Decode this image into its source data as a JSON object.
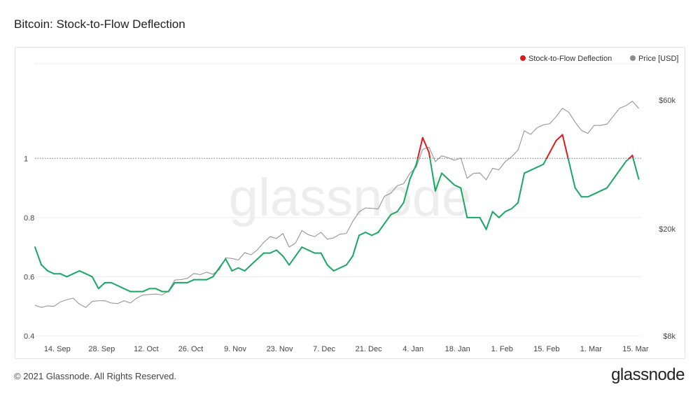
{
  "title": "Bitcoin: Stock-to-Flow Deflection",
  "footer": {
    "copyright": "© 2021 Glassnode. All Rights Reserved.",
    "logo": "glassnode"
  },
  "watermark": "glassnode",
  "colors": {
    "above": "#e0191e",
    "below": "#17a863",
    "price": "#8c8c8c",
    "grid": "#ececec",
    "ref": "#777777"
  },
  "chart_data": {
    "type": "line",
    "title": "Bitcoin: Stock-to-Flow Deflection",
    "legend": [
      {
        "name": "Stock-to-Flow Deflection",
        "color": "#e0191e"
      },
      {
        "name": "Price [USD]",
        "color": "#8c8c8c"
      }
    ],
    "legend_position": "top-right",
    "x_ticks": [
      "14. Sep",
      "28. Sep",
      "12. Oct",
      "26. Oct",
      "9. Nov",
      "23. Nov",
      "7. Dec",
      "21. Dec",
      "4. Jan",
      "18. Jan",
      "1. Feb",
      "15. Feb",
      "1. Mar",
      "15. Mar"
    ],
    "x_range": [
      "2020-09-07",
      "2021-03-17"
    ],
    "left_axis": {
      "ticks": [
        "0.4",
        "0.6",
        "0.8",
        "1"
      ],
      "min": 0.4,
      "max": 1.32,
      "reference_line": 1
    },
    "right_axis": {
      "ticks": [
        "$8k",
        "$20k",
        "$60k"
      ],
      "scale": "log",
      "min": 8000,
      "max": 82000
    },
    "grid": true,
    "series": [
      {
        "name": "Stock-to-Flow Deflection",
        "axis": "left",
        "points": [
          [
            "2020-09-07",
            0.7
          ],
          [
            "2020-09-09",
            0.64
          ],
          [
            "2020-09-11",
            0.62
          ],
          [
            "2020-09-13",
            0.61
          ],
          [
            "2020-09-15",
            0.61
          ],
          [
            "2020-09-17",
            0.6
          ],
          [
            "2020-09-19",
            0.61
          ],
          [
            "2020-09-21",
            0.62
          ],
          [
            "2020-09-23",
            0.61
          ],
          [
            "2020-09-25",
            0.6
          ],
          [
            "2020-09-27",
            0.56
          ],
          [
            "2020-09-29",
            0.58
          ],
          [
            "2020-10-01",
            0.58
          ],
          [
            "2020-10-03",
            0.57
          ],
          [
            "2020-10-05",
            0.56
          ],
          [
            "2020-10-07",
            0.55
          ],
          [
            "2020-10-09",
            0.55
          ],
          [
            "2020-10-11",
            0.55
          ],
          [
            "2020-10-13",
            0.56
          ],
          [
            "2020-10-15",
            0.56
          ],
          [
            "2020-10-17",
            0.55
          ],
          [
            "2020-10-19",
            0.55
          ],
          [
            "2020-10-21",
            0.58
          ],
          [
            "2020-10-23",
            0.58
          ],
          [
            "2020-10-25",
            0.58
          ],
          [
            "2020-10-27",
            0.59
          ],
          [
            "2020-10-29",
            0.59
          ],
          [
            "2020-10-31",
            0.59
          ],
          [
            "2020-11-02",
            0.6
          ],
          [
            "2020-11-04",
            0.63
          ],
          [
            "2020-11-06",
            0.66
          ],
          [
            "2020-11-08",
            0.62
          ],
          [
            "2020-11-10",
            0.63
          ],
          [
            "2020-11-12",
            0.62
          ],
          [
            "2020-11-14",
            0.64
          ],
          [
            "2020-11-16",
            0.66
          ],
          [
            "2020-11-18",
            0.68
          ],
          [
            "2020-11-20",
            0.68
          ],
          [
            "2020-11-22",
            0.69
          ],
          [
            "2020-11-24",
            0.67
          ],
          [
            "2020-11-26",
            0.64
          ],
          [
            "2020-11-28",
            0.67
          ],
          [
            "2020-11-30",
            0.7
          ],
          [
            "2020-12-02",
            0.69
          ],
          [
            "2020-12-04",
            0.68
          ],
          [
            "2020-12-06",
            0.68
          ],
          [
            "2020-12-08",
            0.64
          ],
          [
            "2020-12-10",
            0.62
          ],
          [
            "2020-12-12",
            0.63
          ],
          [
            "2020-12-14",
            0.64
          ],
          [
            "2020-12-16",
            0.67
          ],
          [
            "2020-12-18",
            0.74
          ],
          [
            "2020-12-20",
            0.75
          ],
          [
            "2020-12-22",
            0.74
          ],
          [
            "2020-12-24",
            0.75
          ],
          [
            "2020-12-26",
            0.78
          ],
          [
            "2020-12-28",
            0.81
          ],
          [
            "2020-12-30",
            0.82
          ],
          [
            "2021-01-01",
            0.85
          ],
          [
            "2021-01-03",
            0.93
          ],
          [
            "2021-01-05",
            0.98
          ],
          [
            "2021-01-07",
            1.07
          ],
          [
            "2021-01-09",
            1.02
          ],
          [
            "2021-01-11",
            0.89
          ],
          [
            "2021-01-13",
            0.95
          ],
          [
            "2021-01-15",
            0.93
          ],
          [
            "2021-01-17",
            0.91
          ],
          [
            "2021-01-19",
            0.9
          ],
          [
            "2021-01-21",
            0.8
          ],
          [
            "2021-01-23",
            0.8
          ],
          [
            "2021-01-25",
            0.8
          ],
          [
            "2021-01-27",
            0.76
          ],
          [
            "2021-01-29",
            0.82
          ],
          [
            "2021-01-31",
            0.8
          ],
          [
            "2021-02-02",
            0.82
          ],
          [
            "2021-02-04",
            0.83
          ],
          [
            "2021-02-06",
            0.85
          ],
          [
            "2021-02-08",
            0.95
          ],
          [
            "2021-02-10",
            0.96
          ],
          [
            "2021-02-12",
            0.97
          ],
          [
            "2021-02-14",
            0.98
          ],
          [
            "2021-02-16",
            1.02
          ],
          [
            "2021-02-18",
            1.06
          ],
          [
            "2021-02-20",
            1.08
          ],
          [
            "2021-02-22",
            0.99
          ],
          [
            "2021-02-24",
            0.9
          ],
          [
            "2021-02-26",
            0.87
          ],
          [
            "2021-02-28",
            0.87
          ],
          [
            "2021-03-02",
            0.88
          ],
          [
            "2021-03-04",
            0.89
          ],
          [
            "2021-03-06",
            0.9
          ],
          [
            "2021-03-08",
            0.93
          ],
          [
            "2021-03-10",
            0.96
          ],
          [
            "2021-03-12",
            0.99
          ],
          [
            "2021-03-14",
            1.01
          ],
          [
            "2021-03-16",
            0.93
          ]
        ]
      },
      {
        "name": "Price [USD]",
        "axis": "right",
        "points": [
          [
            "2020-09-07",
            10400
          ],
          [
            "2020-09-09",
            10200
          ],
          [
            "2020-09-11",
            10350
          ],
          [
            "2020-09-13",
            10300
          ],
          [
            "2020-09-15",
            10700
          ],
          [
            "2020-09-17",
            10900
          ],
          [
            "2020-09-19",
            11050
          ],
          [
            "2020-09-21",
            10500
          ],
          [
            "2020-09-23",
            10200
          ],
          [
            "2020-09-25",
            10750
          ],
          [
            "2020-09-27",
            10800
          ],
          [
            "2020-09-29",
            10800
          ],
          [
            "2020-10-01",
            10600
          ],
          [
            "2020-10-03",
            10550
          ],
          [
            "2020-10-05",
            10800
          ],
          [
            "2020-10-07",
            10600
          ],
          [
            "2020-10-09",
            11050
          ],
          [
            "2020-10-11",
            11350
          ],
          [
            "2020-10-13",
            11400
          ],
          [
            "2020-10-15",
            11450
          ],
          [
            "2020-10-17",
            11350
          ],
          [
            "2020-10-19",
            11750
          ],
          [
            "2020-10-21",
            12900
          ],
          [
            "2020-10-23",
            12950
          ],
          [
            "2020-10-25",
            13100
          ],
          [
            "2020-10-27",
            13650
          ],
          [
            "2020-10-29",
            13500
          ],
          [
            "2020-10-31",
            13800
          ],
          [
            "2020-11-02",
            13550
          ],
          [
            "2020-11-04",
            14100
          ],
          [
            "2020-11-06",
            15600
          ],
          [
            "2020-11-08",
            15500
          ],
          [
            "2020-11-10",
            15300
          ],
          [
            "2020-11-12",
            16300
          ],
          [
            "2020-11-14",
            16000
          ],
          [
            "2020-11-16",
            16700
          ],
          [
            "2020-11-18",
            17800
          ],
          [
            "2020-11-20",
            18700
          ],
          [
            "2020-11-22",
            18400
          ],
          [
            "2020-11-24",
            19200
          ],
          [
            "2020-11-26",
            17100
          ],
          [
            "2020-11-28",
            17700
          ],
          [
            "2020-11-30",
            19700
          ],
          [
            "2020-12-02",
            19000
          ],
          [
            "2020-12-04",
            18700
          ],
          [
            "2020-12-06",
            19400
          ],
          [
            "2020-12-08",
            18300
          ],
          [
            "2020-12-10",
            18500
          ],
          [
            "2020-12-12",
            19100
          ],
          [
            "2020-12-14",
            19200
          ],
          [
            "2020-12-16",
            21300
          ],
          [
            "2020-12-18",
            23100
          ],
          [
            "2020-12-20",
            23900
          ],
          [
            "2020-12-22",
            23800
          ],
          [
            "2020-12-24",
            23700
          ],
          [
            "2020-12-26",
            26400
          ],
          [
            "2020-12-28",
            27100
          ],
          [
            "2020-12-30",
            28900
          ],
          [
            "2021-01-01",
            29400
          ],
          [
            "2021-01-03",
            32100
          ],
          [
            "2021-01-05",
            33900
          ],
          [
            "2021-01-07",
            39400
          ],
          [
            "2021-01-09",
            40200
          ],
          [
            "2021-01-11",
            35500
          ],
          [
            "2021-01-13",
            37300
          ],
          [
            "2021-01-15",
            36700
          ],
          [
            "2021-01-17",
            35900
          ],
          [
            "2021-01-19",
            36600
          ],
          [
            "2021-01-21",
            30800
          ],
          [
            "2021-01-23",
            32100
          ],
          [
            "2021-01-25",
            32200
          ],
          [
            "2021-01-27",
            30400
          ],
          [
            "2021-01-29",
            33500
          ],
          [
            "2021-01-31",
            33100
          ],
          [
            "2021-02-02",
            35500
          ],
          [
            "2021-02-04",
            37000
          ],
          [
            "2021-02-06",
            39200
          ],
          [
            "2021-02-08",
            46200
          ],
          [
            "2021-02-10",
            44800
          ],
          [
            "2021-02-12",
            47400
          ],
          [
            "2021-02-14",
            48600
          ],
          [
            "2021-02-16",
            49100
          ],
          [
            "2021-02-18",
            52100
          ],
          [
            "2021-02-20",
            56000
          ],
          [
            "2021-02-22",
            54100
          ],
          [
            "2021-02-24",
            49700
          ],
          [
            "2021-02-26",
            46300
          ],
          [
            "2021-02-28",
            45200
          ],
          [
            "2021-03-02",
            48400
          ],
          [
            "2021-03-04",
            48400
          ],
          [
            "2021-03-06",
            48900
          ],
          [
            "2021-03-08",
            52400
          ],
          [
            "2021-03-10",
            56000
          ],
          [
            "2021-03-12",
            57300
          ],
          [
            "2021-03-14",
            59500
          ],
          [
            "2021-03-16",
            55900
          ]
        ]
      }
    ]
  }
}
